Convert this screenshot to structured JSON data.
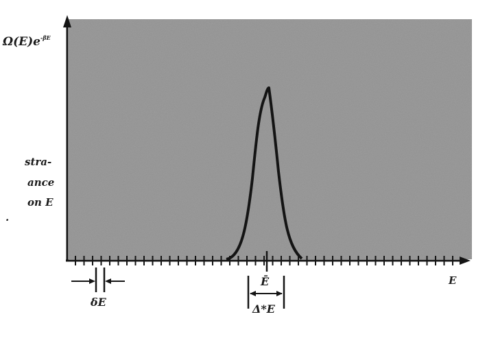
{
  "figure": {
    "y_axis_label": "Ω(E)e",
    "y_axis_label_sup": "-βE",
    "x_axis_label": "E",
    "peak_label": "Ē",
    "width_label": "Δ*E",
    "bin_label": "δE",
    "caption_fragments": [
      "stra-",
      "ance",
      "on E",
      "."
    ]
  },
  "colors": {
    "shade": "#8f8f8f",
    "ink": "#141414",
    "background": "#ffffff"
  }
}
